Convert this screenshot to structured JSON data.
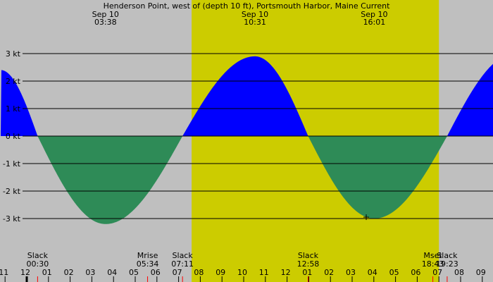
{
  "chart_data": {
    "type": "area",
    "title": "Henderson Point, west of (depth 10 ft), Portsmouth Harbor, Maine Current",
    "top_labels": [
      {
        "date": "Sep 10",
        "time": "03:38"
      },
      {
        "date": "Sep 10",
        "time": "10:31"
      },
      {
        "date": "Sep 10",
        "time": "16:01"
      }
    ],
    "y_ticks": [
      {
        "value": 3,
        "label": "3 kt"
      },
      {
        "value": 2,
        "label": "2 kt"
      },
      {
        "value": 1,
        "label": "1 kt"
      },
      {
        "value": 0,
        "label": "0 kt"
      },
      {
        "value": -1,
        "label": "-1 kt"
      },
      {
        "value": -2,
        "label": "-2 kt"
      },
      {
        "value": -3,
        "label": "-3 kt"
      }
    ],
    "ylim": [
      -4.5,
      4.9
    ],
    "xlim_hours": [
      -1.2,
      33.3
    ],
    "x_ticks": [
      {
        "hour": -1,
        "label": "11"
      },
      {
        "hour": 0,
        "label": "12"
      },
      {
        "hour": 1,
        "label": "01"
      },
      {
        "hour": 2,
        "label": "02"
      },
      {
        "hour": 3,
        "label": "03"
      },
      {
        "hour": 4,
        "label": "04"
      },
      {
        "hour": 5,
        "label": "05"
      },
      {
        "hour": 6,
        "label": "06"
      },
      {
        "hour": 7,
        "label": "07"
      },
      {
        "hour": 8,
        "label": "08"
      },
      {
        "hour": 9,
        "label": "09"
      },
      {
        "hour": 10,
        "label": "10"
      },
      {
        "hour": 11,
        "label": "11"
      },
      {
        "hour": 12,
        "label": "12"
      },
      {
        "hour": 13,
        "label": "01"
      },
      {
        "hour": 14,
        "label": "02"
      },
      {
        "hour": 15,
        "label": "03"
      },
      {
        "hour": 16,
        "label": "04"
      },
      {
        "hour": 17,
        "label": "05"
      },
      {
        "hour": 18,
        "label": "06"
      },
      {
        "hour": 19,
        "label": "07"
      },
      {
        "hour": 20,
        "label": "08"
      },
      {
        "hour": 21,
        "label": "09"
      }
    ],
    "daylight_hours": [
      7.6,
      19.0
    ],
    "current_points": [
      {
        "hour": -1.2,
        "value": 2.4
      },
      {
        "hour": 0.5,
        "value": 0
      },
      {
        "hour": 3.63,
        "value": -3.2
      },
      {
        "hour": 7.18,
        "value": 0
      },
      {
        "hour": 10.52,
        "value": 2.9
      },
      {
        "hour": 12.97,
        "value": 0
      },
      {
        "hour": 16.02,
        "value": -3.0
      },
      {
        "hour": 19.38,
        "value": 0
      },
      {
        "hour": 22.5,
        "value": 3.0
      }
    ],
    "events": [
      {
        "label": "Slack",
        "time": "00:30",
        "hour": 0.5
      },
      {
        "label": "Mrise",
        "time": "05:34",
        "hour": 5.57
      },
      {
        "label": "Slack",
        "time": "07:11",
        "hour": 7.18
      },
      {
        "label": "Slack",
        "time": "12:58",
        "hour": 12.97
      },
      {
        "label": "Mset",
        "time": "18:43",
        "hour": 18.72
      },
      {
        "label": "Slack",
        "time": "19:23",
        "hour": 19.38
      }
    ],
    "now_marker": {
      "hour": 15.65,
      "value": -2.95
    },
    "colors": {
      "night": "#bfbfbf",
      "day": "#cccc00",
      "flood": "#0000ff",
      "ebb": "#2e8b57",
      "gridline": "#000000",
      "event_tick": "#ff0000",
      "midnight_tick": "#000000"
    }
  }
}
